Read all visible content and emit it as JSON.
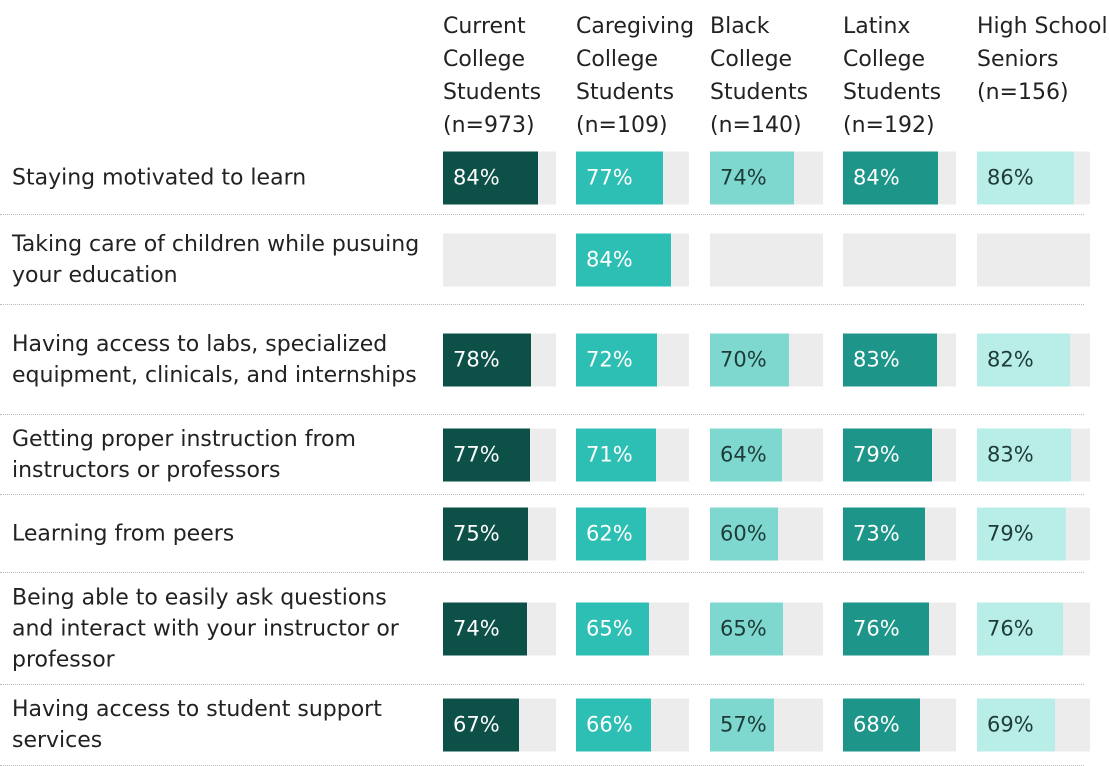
{
  "chart_data": {
    "type": "bar",
    "xlim": [
      0,
      100
    ],
    "categories": [
      "Staying motivated to learn",
      "Taking care of children while pusuing your education",
      "Having access to labs, specialized equipment, clinicals, and internships",
      "Getting proper instruction from instructors or professors",
      "Learning from peers",
      "Being able to easily ask questions and interact with your instructor or professor",
      "Having access to student support services"
    ],
    "series": [
      {
        "name": "Current College Students (n=973)",
        "color": "#0d5048",
        "values": [
          84,
          null,
          78,
          77,
          75,
          74,
          67
        ],
        "value_labels": [
          "84%",
          null,
          "78%",
          "77%",
          "75%",
          "74%",
          "67%"
        ]
      },
      {
        "name": "Caregiving College Students (n=109)",
        "color": "#2ebfb4",
        "values": [
          77,
          84,
          72,
          71,
          62,
          65,
          66
        ],
        "value_labels": [
          "77%",
          "84%",
          "72%",
          "71%",
          "62%",
          "65%",
          "66%"
        ]
      },
      {
        "name": "Black College Students (n=140)",
        "color": "#7ed8cf",
        "values": [
          74,
          null,
          70,
          64,
          60,
          65,
          57
        ],
        "value_labels": [
          "74%",
          null,
          "70%",
          "64%",
          "60%",
          "65%",
          "57%"
        ]
      },
      {
        "name": "Latinx College Students (n=192)",
        "color": "#1e9589",
        "values": [
          84,
          null,
          83,
          79,
          73,
          76,
          68
        ],
        "value_labels": [
          "84%",
          null,
          "83%",
          "79%",
          "73%",
          "76%",
          "68%"
        ]
      },
      {
        "name": "High School Seniors (n=156)",
        "color": "#b8ede8",
        "values": [
          86,
          null,
          82,
          83,
          79,
          76,
          69
        ],
        "value_labels": [
          "86%",
          null,
          "82%",
          "83%",
          "79%",
          "76%",
          "69%"
        ]
      }
    ]
  }
}
